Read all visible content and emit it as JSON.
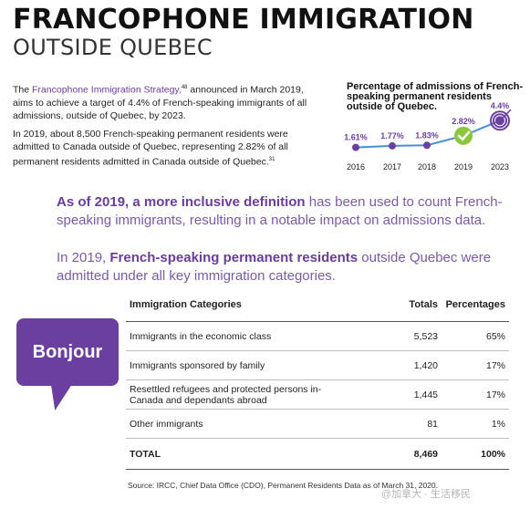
{
  "header": {
    "title": "FRANCOPHONE IMMIGRATION",
    "subtitle": "OUTSIDE QUEBEC"
  },
  "intro": {
    "p1_link": "Francophone Immigration Strategy,",
    "p1_sup": "48",
    "p1_rest": " announced in March 2019, aims to achieve a target of 4.4% of French-speaking immigrants of all admissions, outside of Quebec, by 2023.",
    "p1_prefix": "The ",
    "p2": "In 2019, about 8,500 French-speaking permanent residents were admitted to Canada outside of Quebec, representing 2.82% of all permanent residents admitted in Canada outside of Quebec.",
    "p2_sup": "31"
  },
  "chart_data": {
    "type": "line",
    "title": "Percentage of admissions of French-speaking permanent residents outside of Quebec.",
    "x": [
      "2016",
      "2017",
      "2018",
      "2019",
      "2023"
    ],
    "values": [
      1.61,
      1.77,
      1.83,
      2.82,
      4.4
    ],
    "data_labels": [
      "1.61%",
      "1.77%",
      "1.83%",
      "2.82%",
      "4.4%"
    ],
    "markers": [
      "dot",
      "dot",
      "dot",
      "check-icon",
      "target-icon"
    ],
    "colors": {
      "line": "#4a8fd6",
      "point": "#6b3fa0",
      "check": "#8cc63f",
      "target": "#6b3fa0"
    }
  },
  "statement1": {
    "bold": "As of 2019, a more inclusive definition",
    "rest": " has been used to count French-speaking immigrants, resulting in a notable impact on admissions data."
  },
  "statement2": {
    "prefix": "In 2019, ",
    "bold": "French-speaking permanent residents",
    "rest": " outside Quebec were admitted under all key immigration categories."
  },
  "bubble": {
    "text": "Bonjour",
    "color": "#6b3fa0"
  },
  "table": {
    "headers": [
      "Immigration Categories",
      "Totals",
      "Percentages"
    ],
    "rows": [
      [
        "Immigrants in the economic class",
        "5,523",
        "65%"
      ],
      [
        "Immigrants sponsored by family",
        "1,420",
        "17%"
      ],
      [
        "Resettled refugees and protected persons in-Canada and dependants abroad",
        "1,445",
        "17%"
      ],
      [
        "Other immigrants",
        "81",
        "1%"
      ]
    ],
    "total": [
      "TOTAL",
      "8,469",
      "100%"
    ]
  },
  "source": "Source: IRCC, Chief Data Office (CDO), Permanent Residents Data as of March 31, 2020.",
  "watermark": "@加拿大 · 生活移民"
}
